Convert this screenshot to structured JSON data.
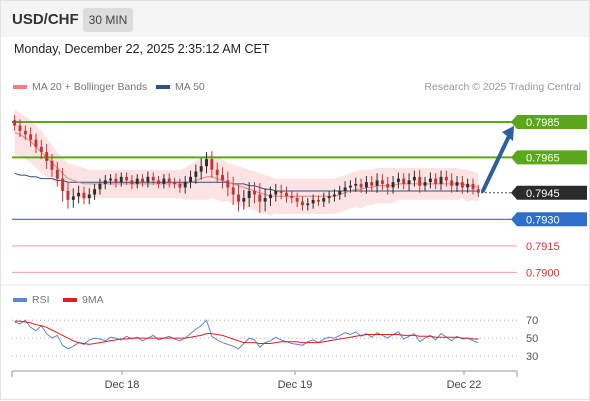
{
  "header": {
    "symbol": "USD/CHF",
    "interval": "30 MIN",
    "timestamp": "Monday, December 22, 2025 2:35:12 AM CET"
  },
  "legend": {
    "ma_bollinger": "MA 20 + Bollinger Bands",
    "ma50": "MA 50",
    "credit": "Research © 2025 Trading Central",
    "rsi": "RSI",
    "rsi_ma": "9MA"
  },
  "colors": {
    "up": "#2e2e2e",
    "down": "#c83232",
    "bollinger_fill": "#fcd9d9",
    "ma20": "#f08080",
    "ma50": "#2d4f8c",
    "resistance": "#5aa81a",
    "support": "#2f6fc9",
    "target": "#e03030",
    "arrow": "#2c5f9e",
    "rsi_line": "#5b86d6",
    "rsi_ma_line": "#e02020"
  },
  "chart_data": [
    {
      "type": "line",
      "subtype": "candlestick",
      "title": "USD/CHF 30 MIN",
      "x_tick_labels": [
        "Dec 18",
        "Dec 19",
        "Dec 22"
      ],
      "price_labels": {
        "resistance_2": "0.7985",
        "resistance_1": "0.7965",
        "last": "0.7945",
        "support_1": "0.7930",
        "support_2": "0.7915",
        "support_3": "0.7900"
      },
      "levels": {
        "resistance": [
          0.7985,
          0.7965
        ],
        "last": 0.7945,
        "support": [
          0.793
        ],
        "targets": [
          0.7915,
          0.79
        ]
      },
      "ylim": [
        0.7894,
        0.7998
      ],
      "series": [
        {
          "name": "USD/CHF",
          "close": [
            0.7983,
            0.798,
            0.7978,
            0.7975,
            0.7971,
            0.7968,
            0.7963,
            0.7958,
            0.7953,
            0.7946,
            0.7941,
            0.7943,
            0.7945,
            0.7942,
            0.7944,
            0.7947,
            0.795,
            0.7952,
            0.7953,
            0.7951,
            0.7954,
            0.7952,
            0.795,
            0.7953,
            0.7951,
            0.7954,
            0.7952,
            0.795,
            0.7953,
            0.7951,
            0.795,
            0.7948,
            0.7951,
            0.7954,
            0.7957,
            0.796,
            0.7964,
            0.7958,
            0.7955,
            0.7952,
            0.7948,
            0.7944,
            0.794,
            0.7942,
            0.7946,
            0.7944,
            0.794,
            0.7942,
            0.7944,
            0.7946,
            0.7945,
            0.7943,
            0.7942,
            0.794,
            0.7938,
            0.7939,
            0.7941,
            0.794,
            0.7942,
            0.7943,
            0.7944,
            0.7946,
            0.7948,
            0.7949,
            0.795,
            0.7948,
            0.7951,
            0.7949,
            0.7952,
            0.795,
            0.7948,
            0.7951,
            0.7953,
            0.795,
            0.7952,
            0.7954,
            0.7949,
            0.7951,
            0.7953,
            0.795,
            0.7954,
            0.7952,
            0.7949,
            0.7951,
            0.7948,
            0.795,
            0.7947,
            0.7945
          ],
          "volatility": [
            0.0006,
            0.0007,
            0.0006,
            0.0008,
            0.0007,
            0.0008,
            0.0009,
            0.0008,
            0.0009,
            0.0012,
            0.001,
            0.0009,
            0.0008,
            0.0007,
            0.0007,
            0.0006,
            0.0006,
            0.0006,
            0.0005,
            0.0006,
            0.0005,
            0.0005,
            0.0006,
            0.0005,
            0.0005,
            0.0006,
            0.0005,
            0.0005,
            0.0005,
            0.0006,
            0.0005,
            0.0006,
            0.0007,
            0.0007,
            0.0008,
            0.0009,
            0.0008,
            0.0009,
            0.0008,
            0.0009,
            0.001,
            0.0012,
            0.0011,
            0.0009,
            0.001,
            0.001,
            0.0013,
            0.0011,
            0.0009,
            0.0008,
            0.0007,
            0.0007,
            0.0006,
            0.0006,
            0.0006,
            0.0006,
            0.0006,
            0.0005,
            0.0006,
            0.0006,
            0.0006,
            0.0006,
            0.0007,
            0.0006,
            0.0007,
            0.0006,
            0.0007,
            0.0007,
            0.0008,
            0.0007,
            0.0008,
            0.0007,
            0.0007,
            0.0006,
            0.0008,
            0.0007,
            0.0008,
            0.0006,
            0.0007,
            0.0006,
            0.0007,
            0.0007,
            0.0008,
            0.0007,
            0.0007,
            0.0006,
            0.0006,
            0.0005
          ],
          "bollinger_upper": [
            0.7992,
            0.799,
            0.7988,
            0.7986,
            0.7983,
            0.798,
            0.7976,
            0.7972,
            0.7968,
            0.7965,
            0.7962,
            0.7961,
            0.796,
            0.7959,
            0.7958,
            0.7958,
            0.7958,
            0.7958,
            0.7958,
            0.7958,
            0.7958,
            0.7958,
            0.7958,
            0.7958,
            0.7958,
            0.7958,
            0.7958,
            0.7958,
            0.7958,
            0.7958,
            0.7958,
            0.7958,
            0.7959,
            0.7961,
            0.7963,
            0.7965,
            0.7967,
            0.7966,
            0.7965,
            0.7964,
            0.7962,
            0.7961,
            0.796,
            0.7959,
            0.7958,
            0.7957,
            0.7956,
            0.7955,
            0.7954,
            0.7953,
            0.7953,
            0.7953,
            0.7953,
            0.7953,
            0.7953,
            0.7953,
            0.7953,
            0.7953,
            0.7953,
            0.7953,
            0.7953,
            0.7954,
            0.7955,
            0.7956,
            0.7957,
            0.7958,
            0.7958,
            0.7958,
            0.7959,
            0.7959,
            0.7959,
            0.7959,
            0.7959,
            0.7959,
            0.7959,
            0.7959,
            0.7959,
            0.7959,
            0.7959,
            0.7959,
            0.7959,
            0.7959,
            0.7959,
            0.7959,
            0.7958,
            0.7958,
            0.7957,
            0.7956
          ],
          "ma20": [
            0.7979,
            0.7978,
            0.7976,
            0.7974,
            0.7971,
            0.7968,
            0.7965,
            0.7962,
            0.7959,
            0.7956,
            0.7953,
            0.7952,
            0.7951,
            0.795,
            0.795,
            0.795,
            0.795,
            0.795,
            0.795,
            0.795,
            0.795,
            0.795,
            0.795,
            0.795,
            0.795,
            0.795,
            0.795,
            0.795,
            0.795,
            0.795,
            0.795,
            0.795,
            0.795,
            0.7951,
            0.7952,
            0.7953,
            0.7954,
            0.7954,
            0.7953,
            0.7952,
            0.7951,
            0.795,
            0.7949,
            0.7948,
            0.7947,
            0.7946,
            0.7945,
            0.7944,
            0.7943,
            0.7943,
            0.7943,
            0.7943,
            0.7943,
            0.7943,
            0.7943,
            0.7943,
            0.7943,
            0.7943,
            0.7943,
            0.7943,
            0.7943,
            0.7944,
            0.7945,
            0.7946,
            0.7947,
            0.7947,
            0.7948,
            0.7948,
            0.7949,
            0.7949,
            0.7949,
            0.7949,
            0.795,
            0.795,
            0.795,
            0.795,
            0.795,
            0.795,
            0.795,
            0.795,
            0.795,
            0.795,
            0.795,
            0.795,
            0.795,
            0.7949,
            0.7949,
            0.7948
          ],
          "bollinger_lower": [
            0.7966,
            0.7966,
            0.7964,
            0.7962,
            0.7959,
            0.7956,
            0.7954,
            0.7952,
            0.795,
            0.7947,
            0.7944,
            0.7943,
            0.7942,
            0.7941,
            0.7942,
            0.7942,
            0.7942,
            0.7942,
            0.7942,
            0.7942,
            0.7942,
            0.7942,
            0.7942,
            0.7942,
            0.7942,
            0.7942,
            0.7942,
            0.7942,
            0.7942,
            0.7942,
            0.7942,
            0.7942,
            0.7941,
            0.7941,
            0.7941,
            0.7941,
            0.7941,
            0.7942,
            0.7941,
            0.794,
            0.794,
            0.7939,
            0.7938,
            0.7937,
            0.7936,
            0.7935,
            0.7934,
            0.7933,
            0.7932,
            0.7933,
            0.7933,
            0.7933,
            0.7933,
            0.7933,
            0.7933,
            0.7933,
            0.7933,
            0.7933,
            0.7933,
            0.7933,
            0.7933,
            0.7934,
            0.7935,
            0.7936,
            0.7937,
            0.7936,
            0.7938,
            0.7938,
            0.7939,
            0.7939,
            0.7939,
            0.7939,
            0.7941,
            0.7941,
            0.7941,
            0.7941,
            0.7941,
            0.7941,
            0.7941,
            0.7941,
            0.7941,
            0.7941,
            0.7941,
            0.7941,
            0.7942,
            0.794,
            0.7941,
            0.794
          ],
          "ma50": [
            0.7956,
            0.7955,
            0.7955,
            0.7954,
            0.7954,
            0.7953,
            0.7953,
            0.7953,
            0.7952,
            0.7952,
            0.7951,
            0.7951,
            0.7951,
            0.7951,
            0.7951,
            0.7951,
            0.7951,
            0.7951,
            0.7951,
            0.7951,
            0.7951,
            0.7951,
            0.7951,
            0.7951,
            0.7951,
            0.7951,
            0.7951,
            0.7951,
            0.7951,
            0.7951,
            0.7951,
            0.7951,
            0.7951,
            0.7951,
            0.7951,
            0.7951,
            0.7951,
            0.7951,
            0.7951,
            0.7951,
            0.7951,
            0.795,
            0.795,
            0.795,
            0.7949,
            0.7949,
            0.7948,
            0.7947,
            0.7947,
            0.7946,
            0.7946,
            0.7946,
            0.7946,
            0.7946,
            0.7946,
            0.7946,
            0.7946,
            0.7946,
            0.7946,
            0.7946,
            0.7946,
            0.7946,
            0.7946,
            0.7946,
            0.7946,
            0.7946,
            0.7946,
            0.7946,
            0.7946,
            0.7946,
            0.7946,
            0.7946,
            0.7946,
            0.7946,
            0.7946,
            0.7946,
            0.7946,
            0.7946,
            0.7946,
            0.7946,
            0.7946,
            0.7946,
            0.7946,
            0.7946,
            0.7946,
            0.7946,
            0.7946,
            0.7946
          ]
        }
      ],
      "projection": {
        "from": 0.7945,
        "to": 0.7985
      }
    },
    {
      "type": "line",
      "title": "RSI",
      "y_tick_labels": [
        "70",
        "50",
        "30"
      ],
      "ylim": [
        20,
        78
      ],
      "reference_lines": [
        70,
        50,
        30
      ],
      "series": [
        {
          "name": "RSI",
          "values": [
            68,
            66,
            70,
            62,
            58,
            64,
            55,
            50,
            53,
            42,
            38,
            41,
            45,
            43,
            48,
            50,
            49,
            47,
            51,
            50,
            48,
            52,
            49,
            51,
            47,
            50,
            53,
            48,
            50,
            52,
            49,
            47,
            50,
            55,
            60,
            64,
            70,
            52,
            48,
            45,
            43,
            41,
            38,
            44,
            50,
            48,
            40,
            45,
            47,
            51,
            48,
            46,
            44,
            43,
            42,
            46,
            48,
            45,
            49,
            51,
            50,
            53,
            56,
            54,
            57,
            52,
            55,
            51,
            56,
            53,
            50,
            54,
            57,
            49,
            52,
            55,
            46,
            50,
            53,
            48,
            55,
            51,
            47,
            52,
            49,
            50,
            47,
            45
          ]
        },
        {
          "name": "9MA",
          "values": [
            69,
            69,
            68,
            67,
            65,
            64,
            62,
            59,
            56,
            53,
            50,
            47,
            45,
            44,
            43,
            44,
            45,
            46,
            47,
            48,
            49,
            49,
            50,
            50,
            50,
            50,
            50,
            50,
            50,
            50,
            50,
            50,
            50,
            51,
            52,
            53,
            55,
            55,
            54,
            53,
            51,
            49,
            47,
            45,
            45,
            45,
            44,
            44,
            44,
            45,
            46,
            46,
            46,
            46,
            45,
            45,
            45,
            45,
            46,
            47,
            48,
            49,
            50,
            51,
            52,
            53,
            54,
            54,
            54,
            54,
            54,
            54,
            54,
            53,
            53,
            53,
            52,
            52,
            52,
            51,
            51,
            51,
            51,
            51,
            50,
            50,
            49,
            49
          ]
        }
      ]
    }
  ]
}
